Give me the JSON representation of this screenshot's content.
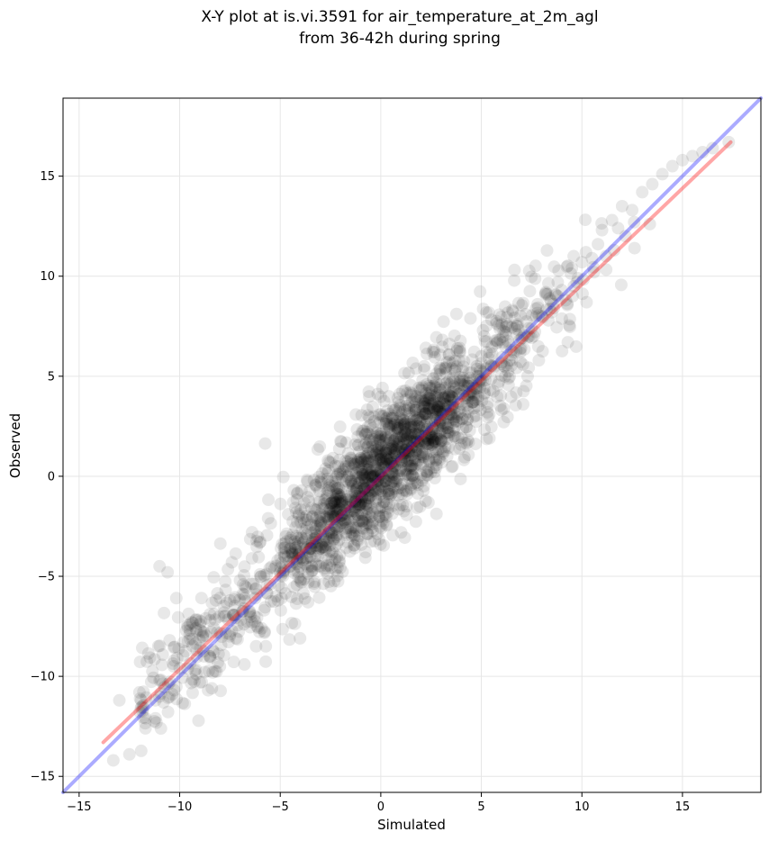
{
  "chart_data": {
    "type": "scatter",
    "title_line1": "X-Y plot at is.vi.3591 for air_temperature_at_2m_agl",
    "title_line2": "from 36-42h during spring",
    "xlabel": "Simulated",
    "ylabel": "Observed",
    "xlim": [
      -15.8,
      18.9
    ],
    "ylim": [
      -15.8,
      18.9
    ],
    "x_ticks": [
      -15,
      -10,
      -5,
      0,
      5,
      10,
      15
    ],
    "y_ticks": [
      -15,
      -10,
      -5,
      0,
      5,
      10,
      15
    ],
    "x_tick_labels": [
      "−15",
      "−10",
      "−5",
      "0",
      "5",
      "10",
      "15"
    ],
    "y_tick_labels": [
      "−15",
      "−10",
      "−5",
      "0",
      "5",
      "10",
      "15"
    ],
    "grid": true,
    "point_color": "#000000",
    "point_opacity": 0.09,
    "fit_line": {
      "color": "#ff0000",
      "x": [
        -13.8,
        17.4
      ],
      "y": [
        -13.3,
        16.7
      ]
    },
    "identity_line": {
      "color": "#0000ff",
      "x": [
        -15.8,
        18.9
      ],
      "y": [
        -15.8,
        18.9
      ]
    },
    "points": {
      "note_style": "ensemble",
      "x": [
        -13.3,
        -13.0,
        -12.5,
        -12.0,
        -11.7,
        -11.2,
        -11.0,
        -10.8,
        -10.5,
        -10.3,
        -10.0,
        -9.8,
        -9.5,
        -9.2,
        -9.0,
        -8.8,
        -8.5,
        -8.2,
        -8.0,
        -7.8,
        -7.5,
        -7.2,
        -7.0,
        -6.8,
        -6.5,
        -6.2,
        -6.0,
        -5.8,
        -5.5,
        -5.2,
        -5.0,
        -4.8,
        -4.5,
        -4.2,
        -4.0,
        -3.8,
        -3.5,
        -3.2,
        -3.0,
        -2.8,
        -2.5,
        -2.2,
        -2.0,
        -1.8,
        -1.5,
        -1.2,
        -1.0,
        -0.8,
        -0.5,
        -0.2,
        0.0,
        0.2,
        0.5,
        0.8,
        1.0,
        1.2,
        1.5,
        1.8,
        2.0,
        2.2,
        2.5,
        2.8,
        3.0,
        3.2,
        3.5,
        3.8,
        4.0,
        4.2,
        4.5,
        4.8,
        5.0,
        5.2,
        5.5,
        5.8,
        6.0,
        6.2,
        6.5,
        6.8,
        7.0,
        7.2,
        7.5,
        7.8,
        8.0,
        8.2,
        8.5,
        8.8,
        9.0,
        9.2,
        9.5,
        9.8,
        10.0,
        10.2,
        10.5,
        10.8,
        11.0,
        11.2,
        11.5,
        11.8,
        12.0,
        12.5,
        13.0,
        13.5,
        14.0,
        14.5,
        15.0,
        15.5,
        16.0,
        16.5,
        17.3,
        -9.2,
        -9.0,
        -8.7,
        -9.4,
        -8.5,
        -11.0,
        -10.6,
        -7.4,
        -6.4,
        -4.6,
        -3.4,
        -2.9,
        -0.9,
        -0.4,
        0.6,
        1.4,
        2.4,
        3.6,
        4.4,
        5.6,
        6.6,
        7.6,
        8.6,
        9.6,
        10.6,
        11.6,
        12.6,
        -5.6,
        -4.2,
        -1.6,
        0.9,
        2.8,
        4.8,
        6.8,
        8.8,
        -8.4,
        -6.2,
        -3.6,
        -1.3,
        1.3,
        3.3,
        5.3,
        7.3,
        9.3
      ],
      "y": [
        -14.2,
        -11.2,
        -13.9,
        -10.8,
        -12.6,
        -12.1,
        -10.2,
        -11.3,
        -8.2,
        -9.5,
        -9.6,
        -8.3,
        -7.4,
        -7.6,
        -10.3,
        -7.8,
        -9.0,
        -6.2,
        -9.5,
        -7.0,
        -7.9,
        -8.1,
        -5.2,
        -7.4,
        -6.9,
        -5.6,
        -4.9,
        -6.7,
        -5.4,
        -6.0,
        -4.8,
        -3.6,
        -4.5,
        -3.0,
        -4.1,
        -2.3,
        -3.5,
        -1.7,
        -1.9,
        -3.2,
        -2.0,
        -0.6,
        -1.1,
        -1.5,
        -2.8,
        -0.7,
        0.9,
        -0.1,
        -0.4,
        1.3,
        0.1,
        0.7,
        -0.9,
        1.6,
        0.4,
        2.2,
        0.5,
        2.6,
        1.8,
        3.1,
        2.0,
        3.5,
        2.9,
        3.8,
        4.2,
        3.1,
        4.6,
        3.9,
        5.2,
        4.4,
        6.0,
        4.8,
        5.5,
        6.7,
        5.7,
        7.2,
        6.3,
        7.5,
        6.9,
        8.1,
        7.4,
        8.6,
        8.0,
        9.2,
        8.2,
        9.7,
        9.3,
        8.8,
        10.4,
        9.9,
        10.7,
        11.2,
        10.9,
        11.6,
        12.3,
        11.0,
        12.8,
        12.4,
        13.5,
        13.3,
        14.2,
        14.6,
        15.1,
        15.5,
        15.8,
        16.0,
        16.2,
        16.4,
        16.7,
        -7.2,
        -7.4,
        -7.1,
        -7.3,
        -6.9,
        -4.5,
        -4.8,
        -4.3,
        -2.8,
        -1.9,
        -2.0,
        -1.6,
        0.2,
        0.7,
        1.5,
        2.1,
        2.9,
        3.6,
        4.1,
        5.5,
        6.2,
        7.0,
        8.4,
        9.5,
        10.2,
        11.3,
        12.7,
        -2.1,
        -1.8,
        -0.3,
        1.9,
        3.3,
        5.0,
        7.6,
        9.0,
        -10.6,
        -8.5,
        -5.3,
        -3.0,
        -0.9,
        1.0,
        3.2,
        5.0,
        6.7
      ]
    }
  }
}
